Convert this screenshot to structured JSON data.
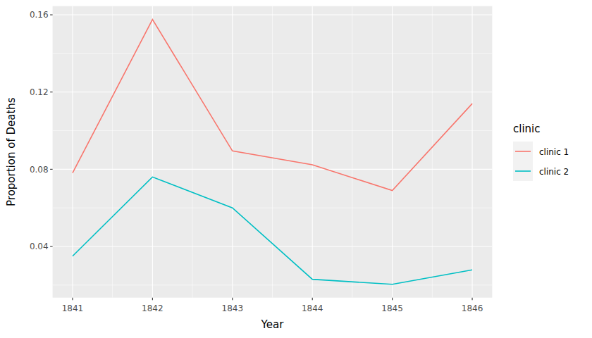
{
  "chart_data": {
    "type": "line",
    "x_label": "Year",
    "y_label": "Proportion of Deaths",
    "legend_title": "clinic",
    "x": [
      1841,
      1842,
      1843,
      1844,
      1845,
      1846
    ],
    "series": [
      {
        "name": "clinic 1",
        "color": "#F8766D",
        "values": [
          0.0781,
          0.1576,
          0.0895,
          0.0823,
          0.069,
          0.114
        ]
      },
      {
        "name": "clinic 2",
        "color": "#00BFC4",
        "values": [
          0.035,
          0.076,
          0.06,
          0.023,
          0.0204,
          0.0279
        ]
      }
    ],
    "xlim": [
      1840.75,
      1846.25
    ],
    "xticks": [
      1841,
      1842,
      1843,
      1844,
      1845,
      1846
    ],
    "ylim": [
      0.0135,
      0.1645
    ],
    "yticks": [
      0.04,
      0.08,
      0.12,
      0.16
    ],
    "grid": true,
    "legend": "right"
  }
}
